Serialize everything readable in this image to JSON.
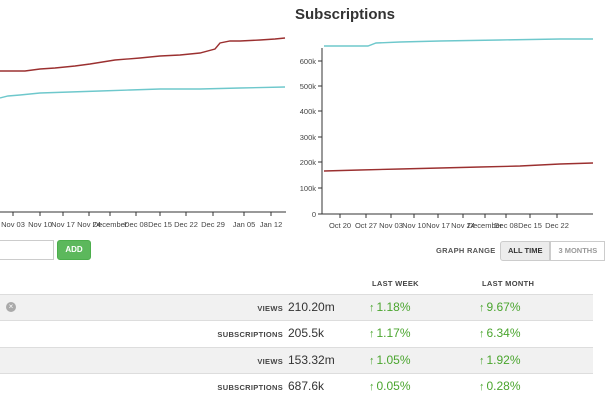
{
  "title": "Subscriptions",
  "left_chart": {
    "x_ticks": [
      "Nov 03",
      "Nov 10",
      "Nov 17",
      "Nov 24",
      "December",
      "Dec 08",
      "Dec 15",
      "Dec 22",
      "Dec 29",
      "Jan 05",
      "Jan 12"
    ]
  },
  "right_chart": {
    "y_ticks": [
      "0",
      "100k",
      "200k",
      "300k",
      "400k",
      "500k",
      "600k"
    ],
    "x_ticks": [
      "Oct 20",
      "Oct 27",
      "Nov 03",
      "Nov 10",
      "Nov 17",
      "Nov 24",
      "December",
      "Dec 08",
      "Dec 15",
      "Dec 22"
    ]
  },
  "controls": {
    "add_label": "ADD",
    "add_placeholder": "",
    "graph_range_label": "GRAPH RANGE",
    "range_options": [
      "ALL TIME",
      "3 MONTHS"
    ]
  },
  "table": {
    "headers": [
      "LAST WEEK",
      "LAST MONTH"
    ],
    "rows": [
      {
        "label": "VIEWS",
        "value": "210.20m",
        "week": "1.18%",
        "month": "9.67%"
      },
      {
        "label": "SUBSCRIPTIONS",
        "value": "205.5k",
        "week": "1.17%",
        "month": "6.34%"
      },
      {
        "label": "VIEWS",
        "value": "153.32m",
        "week": "1.05%",
        "month": "1.92%"
      },
      {
        "label": "SUBSCRIPTIONS",
        "value": "687.6k",
        "week": "0.05%",
        "month": "0.28%"
      }
    ]
  },
  "colors": {
    "red_series": "#9b3030",
    "teal_series": "#6ec8cc",
    "positive": "#4aa52e",
    "add_button": "#5cb85c"
  }
}
